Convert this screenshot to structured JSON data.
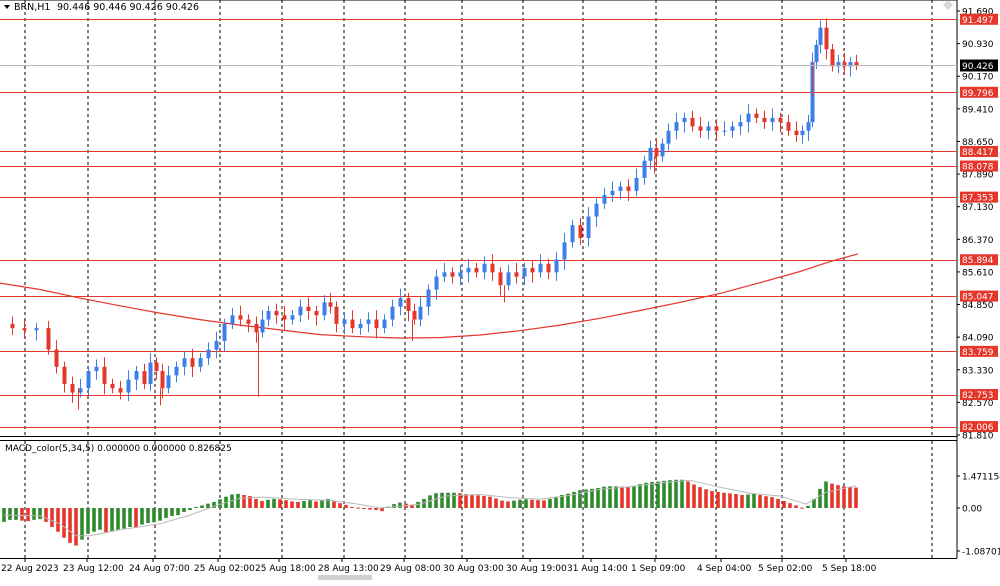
{
  "colors": {
    "up": "#3d7fe6",
    "down": "#e5362b",
    "ma": "#e5362b",
    "level": "#e5362b",
    "hist_up": "#2e8b2e",
    "hist_down": "#e5362b",
    "signal": "#b9b9b9",
    "grid": "#000000",
    "price_tag_bg": "#000000"
  },
  "header": {
    "symbol_label": "BRN,H1",
    "ohlc": "90.446 90.446 90.426 90.426"
  },
  "macd_header": {
    "label": "MACD_color(5,34,5) 0.000000 0.000000 0.826825"
  },
  "chart_data": [
    {
      "type": "candlestick",
      "symbol": "BRN",
      "timeframe": "H1",
      "ylim": [
        81.81,
        91.69
      ],
      "y_ticks": [
        "91.690",
        "90.930",
        "90.170",
        "89.410",
        "88.650",
        "87.890",
        "87.130",
        "86.370",
        "85.610",
        "84.850",
        "84.090",
        "83.330",
        "82.570",
        "81.810"
      ],
      "x_ticks": [
        "22 Aug 2023",
        "23 Aug 12:00",
        "24 Aug 07:00",
        "25 Aug 02:00",
        "25 Aug 18:00",
        "28 Aug 13:00",
        "29 Aug 08:00",
        "30 Aug 03:00",
        "30 Aug 19:00",
        "31 Aug 14:00",
        "1 Sep 09:00",
        "4 Sep 04:00",
        "5 Sep 02:00",
        "5 Sep 18:00"
      ],
      "last_price": "90.426",
      "horizontal_levels": [
        "91.497",
        "89.796",
        "88.417",
        "88.078",
        "87.353",
        "85.894",
        "85.047",
        "83.759",
        "82.753",
        "82.006"
      ],
      "moving_average": [
        [
          0,
          85.35
        ],
        [
          40,
          85.2
        ],
        [
          80,
          85.0
        ],
        [
          120,
          84.82
        ],
        [
          160,
          84.65
        ],
        [
          200,
          84.5
        ],
        [
          240,
          84.37
        ],
        [
          280,
          84.26
        ],
        [
          320,
          84.15
        ],
        [
          360,
          84.1
        ],
        [
          400,
          84.07
        ],
        [
          440,
          84.08
        ],
        [
          480,
          84.14
        ],
        [
          520,
          84.24
        ],
        [
          560,
          84.37
        ],
        [
          600,
          84.53
        ],
        [
          640,
          84.71
        ],
        [
          680,
          84.9
        ],
        [
          720,
          85.11
        ],
        [
          760,
          85.36
        ],
        [
          800,
          85.62
        ],
        [
          830,
          85.85
        ],
        [
          858,
          86.03
        ]
      ],
      "close_series": [
        [
          0,
          84.4
        ],
        [
          12,
          84.3
        ],
        [
          24,
          84.25
        ],
        [
          36,
          84.3
        ],
        [
          48,
          83.8
        ],
        [
          56,
          83.4
        ],
        [
          64,
          83.0
        ],
        [
          72,
          82.8
        ],
        [
          80,
          82.9
        ],
        [
          88,
          83.3
        ],
        [
          96,
          83.4
        ],
        [
          104,
          83.0
        ],
        [
          112,
          82.9
        ],
        [
          120,
          82.8
        ],
        [
          128,
          83.1
        ],
        [
          136,
          83.3
        ],
        [
          144,
          83.0
        ],
        [
          150,
          83.5
        ],
        [
          156,
          83.3
        ],
        [
          162,
          82.9
        ],
        [
          168,
          83.2
        ],
        [
          176,
          83.4
        ],
        [
          184,
          83.6
        ],
        [
          192,
          83.4
        ],
        [
          200,
          83.6
        ],
        [
          208,
          83.8
        ],
        [
          216,
          84.0
        ],
        [
          224,
          84.4
        ],
        [
          232,
          84.6
        ],
        [
          240,
          84.5
        ],
        [
          248,
          84.4
        ],
        [
          256,
          84.2
        ],
        [
          262,
          84.5
        ],
        [
          268,
          84.7
        ],
        [
          276,
          84.6
        ],
        [
          284,
          84.5
        ],
        [
          292,
          84.6
        ],
        [
          300,
          84.8
        ],
        [
          308,
          84.7
        ],
        [
          316,
          84.6
        ],
        [
          324,
          84.9
        ],
        [
          330,
          84.8
        ],
        [
          336,
          84.4
        ],
        [
          344,
          84.5
        ],
        [
          352,
          84.3
        ],
        [
          360,
          84.4
        ],
        [
          368,
          84.5
        ],
        [
          376,
          84.3
        ],
        [
          384,
          84.5
        ],
        [
          392,
          84.8
        ],
        [
          400,
          85.0
        ],
        [
          408,
          84.7
        ],
        [
          414,
          84.5
        ],
        [
          420,
          84.8
        ],
        [
          428,
          85.2
        ],
        [
          436,
          85.5
        ],
        [
          444,
          85.6
        ],
        [
          452,
          85.5
        ],
        [
          460,
          85.6
        ],
        [
          468,
          85.7
        ],
        [
          476,
          85.6
        ],
        [
          484,
          85.8
        ],
        [
          492,
          85.6
        ],
        [
          500,
          85.3
        ],
        [
          508,
          85.6
        ],
        [
          516,
          85.5
        ],
        [
          524,
          85.7
        ],
        [
          532,
          85.6
        ],
        [
          540,
          85.8
        ],
        [
          548,
          85.6
        ],
        [
          556,
          85.9
        ],
        [
          564,
          86.3
        ],
        [
          572,
          86.7
        ],
        [
          580,
          86.4
        ],
        [
          588,
          86.9
        ],
        [
          596,
          87.2
        ],
        [
          604,
          87.4
        ],
        [
          612,
          87.5
        ],
        [
          620,
          87.6
        ],
        [
          628,
          87.5
        ],
        [
          636,
          87.8
        ],
        [
          644,
          88.2
        ],
        [
          650,
          88.5
        ],
        [
          656,
          88.3
        ],
        [
          662,
          88.6
        ],
        [
          668,
          88.9
        ],
        [
          676,
          89.1
        ],
        [
          684,
          89.2
        ],
        [
          692,
          89.0
        ],
        [
          700,
          88.9
        ],
        [
          708,
          89.0
        ],
        [
          716,
          88.9
        ],
        [
          724,
          88.9
        ],
        [
          732,
          89.0
        ],
        [
          740,
          89.1
        ],
        [
          748,
          89.3
        ],
        [
          756,
          89.2
        ],
        [
          764,
          89.1
        ],
        [
          772,
          89.2
        ],
        [
          780,
          89.1
        ],
        [
          788,
          88.9
        ],
        [
          796,
          88.8
        ],
        [
          802,
          88.9
        ],
        [
          808,
          89.1
        ],
        [
          812,
          90.5
        ],
        [
          816,
          90.9
        ],
        [
          820,
          91.3
        ],
        [
          826,
          90.8
        ],
        [
          832,
          90.4
        ],
        [
          838,
          90.5
        ],
        [
          844,
          90.4
        ],
        [
          850,
          90.5
        ],
        [
          856,
          90.43
        ]
      ]
    },
    {
      "type": "bar",
      "indicator": "MACD_color(5,34,5)",
      "ylim": [
        -1.087012,
        1.471154
      ],
      "y_ticks": [
        "1.471154",
        "0.00",
        "-1.087012"
      ],
      "histogram": [
        [
          4,
          -0.35
        ],
        [
          10,
          -0.3
        ],
        [
          16,
          -0.3
        ],
        [
          22,
          -0.32
        ],
        [
          28,
          -0.33
        ],
        [
          34,
          -0.3
        ],
        [
          40,
          -0.28
        ],
        [
          46,
          -0.35
        ],
        [
          52,
          -0.48
        ],
        [
          58,
          -0.6
        ],
        [
          64,
          -0.75
        ],
        [
          70,
          -0.88
        ],
        [
          76,
          -0.95
        ],
        [
          82,
          -0.8
        ],
        [
          88,
          -0.65
        ],
        [
          94,
          -0.6
        ],
        [
          100,
          -0.55
        ],
        [
          106,
          -0.62
        ],
        [
          112,
          -0.58
        ],
        [
          118,
          -0.55
        ],
        [
          124,
          -0.52
        ],
        [
          130,
          -0.48
        ],
        [
          136,
          -0.5
        ],
        [
          142,
          -0.42
        ],
        [
          148,
          -0.38
        ],
        [
          154,
          -0.36
        ],
        [
          160,
          -0.32
        ],
        [
          166,
          -0.25
        ],
        [
          172,
          -0.2
        ],
        [
          178,
          -0.18
        ],
        [
          184,
          -0.1
        ],
        [
          190,
          -0.05
        ],
        [
          196,
          0.05
        ],
        [
          202,
          0.12
        ],
        [
          208,
          0.2
        ],
        [
          214,
          0.28
        ],
        [
          220,
          0.4
        ],
        [
          226,
          0.52
        ],
        [
          232,
          0.62
        ],
        [
          238,
          0.65
        ],
        [
          244,
          0.6
        ],
        [
          250,
          0.55
        ],
        [
          256,
          0.42
        ],
        [
          262,
          0.32
        ],
        [
          268,
          0.38
        ],
        [
          274,
          0.42
        ],
        [
          280,
          0.4
        ],
        [
          286,
          0.36
        ],
        [
          292,
          0.3
        ],
        [
          298,
          0.28
        ],
        [
          304,
          0.32
        ],
        [
          310,
          0.36
        ],
        [
          316,
          0.3
        ],
        [
          322,
          0.34
        ],
        [
          328,
          0.42
        ],
        [
          334,
          0.3
        ],
        [
          340,
          0.22
        ],
        [
          346,
          0.14
        ],
        [
          352,
          0.05
        ],
        [
          358,
          0.02
        ],
        [
          364,
          -0.02
        ],
        [
          370,
          -0.04
        ],
        [
          376,
          -0.05
        ],
        [
          382,
          -0.08
        ],
        [
          388,
          0.06
        ],
        [
          394,
          0.18
        ],
        [
          400,
          0.25
        ],
        [
          406,
          0.2
        ],
        [
          412,
          0.15
        ],
        [
          418,
          0.28
        ],
        [
          424,
          0.42
        ],
        [
          430,
          0.58
        ],
        [
          436,
          0.68
        ],
        [
          442,
          0.7
        ],
        [
          448,
          0.7
        ],
        [
          454,
          0.7
        ],
        [
          460,
          0.68
        ],
        [
          466,
          0.64
        ],
        [
          472,
          0.62
        ],
        [
          478,
          0.58
        ],
        [
          484,
          0.55
        ],
        [
          490,
          0.52
        ],
        [
          496,
          0.44
        ],
        [
          502,
          0.34
        ],
        [
          508,
          0.3
        ],
        [
          514,
          0.34
        ],
        [
          520,
          0.38
        ],
        [
          526,
          0.4
        ],
        [
          532,
          0.38
        ],
        [
          538,
          0.36
        ],
        [
          544,
          0.35
        ],
        [
          550,
          0.42
        ],
        [
          556,
          0.52
        ],
        [
          562,
          0.6
        ],
        [
          568,
          0.66
        ],
        [
          574,
          0.74
        ],
        [
          580,
          0.82
        ],
        [
          586,
          0.85
        ],
        [
          592,
          0.88
        ],
        [
          598,
          0.92
        ],
        [
          604,
          0.98
        ],
        [
          610,
          1.0
        ],
        [
          616,
          1.0
        ],
        [
          622,
          0.98
        ],
        [
          628,
          0.96
        ],
        [
          634,
          1.02
        ],
        [
          640,
          1.1
        ],
        [
          646,
          1.16
        ],
        [
          652,
          1.2
        ],
        [
          658,
          1.22
        ],
        [
          664,
          1.25
        ],
        [
          670,
          1.28
        ],
        [
          676,
          1.3
        ],
        [
          682,
          1.3
        ],
        [
          688,
          1.22
        ],
        [
          694,
          1.08
        ],
        [
          700,
          0.96
        ],
        [
          706,
          0.86
        ],
        [
          712,
          0.78
        ],
        [
          718,
          0.74
        ],
        [
          724,
          0.7
        ],
        [
          730,
          0.67
        ],
        [
          736,
          0.64
        ],
        [
          742,
          0.6
        ],
        [
          748,
          0.62
        ],
        [
          754,
          0.66
        ],
        [
          760,
          0.6
        ],
        [
          766,
          0.54
        ],
        [
          772,
          0.5
        ],
        [
          778,
          0.42
        ],
        [
          784,
          0.32
        ],
        [
          790,
          0.22
        ],
        [
          796,
          0.12
        ],
        [
          802,
          0.02
        ],
        [
          808,
          0.1
        ],
        [
          814,
          0.42
        ],
        [
          820,
          0.88
        ],
        [
          826,
          1.22
        ],
        [
          832,
          1.12
        ],
        [
          838,
          1.05
        ],
        [
          844,
          1.0
        ],
        [
          850,
          0.97
        ],
        [
          856,
          0.94
        ]
      ],
      "signal": [
        [
          4,
          -0.18
        ],
        [
          40,
          -0.2
        ],
        [
          60,
          -0.4
        ],
        [
          76,
          -0.7
        ],
        [
          90,
          -0.7
        ],
        [
          120,
          -0.55
        ],
        [
          160,
          -0.4
        ],
        [
          190,
          -0.18
        ],
        [
          214,
          0.08
        ],
        [
          240,
          0.45
        ],
        [
          262,
          0.5
        ],
        [
          290,
          0.42
        ],
        [
          330,
          0.35
        ],
        [
          358,
          0.18
        ],
        [
          380,
          0.0
        ],
        [
          400,
          0.08
        ],
        [
          420,
          0.18
        ],
        [
          446,
          0.55
        ],
        [
          480,
          0.62
        ],
        [
          510,
          0.48
        ],
        [
          540,
          0.4
        ],
        [
          570,
          0.58
        ],
        [
          600,
          0.86
        ],
        [
          630,
          0.98
        ],
        [
          660,
          1.15
        ],
        [
          690,
          1.28
        ],
        [
          720,
          0.95
        ],
        [
          750,
          0.68
        ],
        [
          780,
          0.55
        ],
        [
          806,
          0.18
        ],
        [
          826,
          0.72
        ],
        [
          856,
          1.02
        ]
      ]
    }
  ]
}
